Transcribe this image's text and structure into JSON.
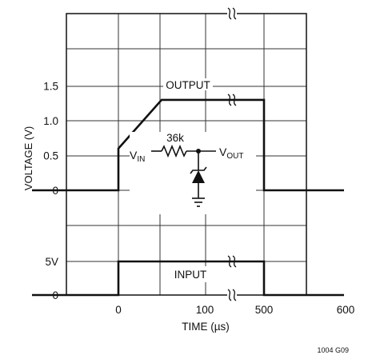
{
  "chart_data": [
    {
      "type": "line",
      "panel": "output",
      "ylabel": "VOLTAGE (V)",
      "y_ticks": [
        "0",
        "0.5",
        "1.0",
        "1.5"
      ],
      "annotation": "OUTPUT",
      "series": [
        {
          "name": "OUTPUT",
          "x": [
            -100,
            0,
            0,
            50,
            500,
            500,
            600
          ],
          "y": [
            0,
            0,
            0.6,
            1.3,
            1.3,
            0,
            0
          ]
        }
      ],
      "ylim": [
        0,
        2.3
      ],
      "axis_break": "≈"
    },
    {
      "type": "line",
      "panel": "input",
      "y_ticks": [
        "0",
        "5V"
      ],
      "annotation": "INPUT",
      "series": [
        {
          "name": "INPUT",
          "x": [
            -100,
            0,
            0,
            500,
            500,
            600
          ],
          "y": [
            0,
            0,
            5,
            5,
            0,
            0
          ]
        }
      ]
    }
  ],
  "xaxis": {
    "label": "TIME (µs)",
    "tick_labels": [
      "0",
      "100",
      "500",
      "600"
    ],
    "break_symbol": "≈"
  },
  "circuit": {
    "resistor_label": "36k",
    "vin_label": "V",
    "vin_sub": "IN",
    "vout_label": "V",
    "vout_sub": "OUT"
  },
  "figure_id": "1004 G09"
}
